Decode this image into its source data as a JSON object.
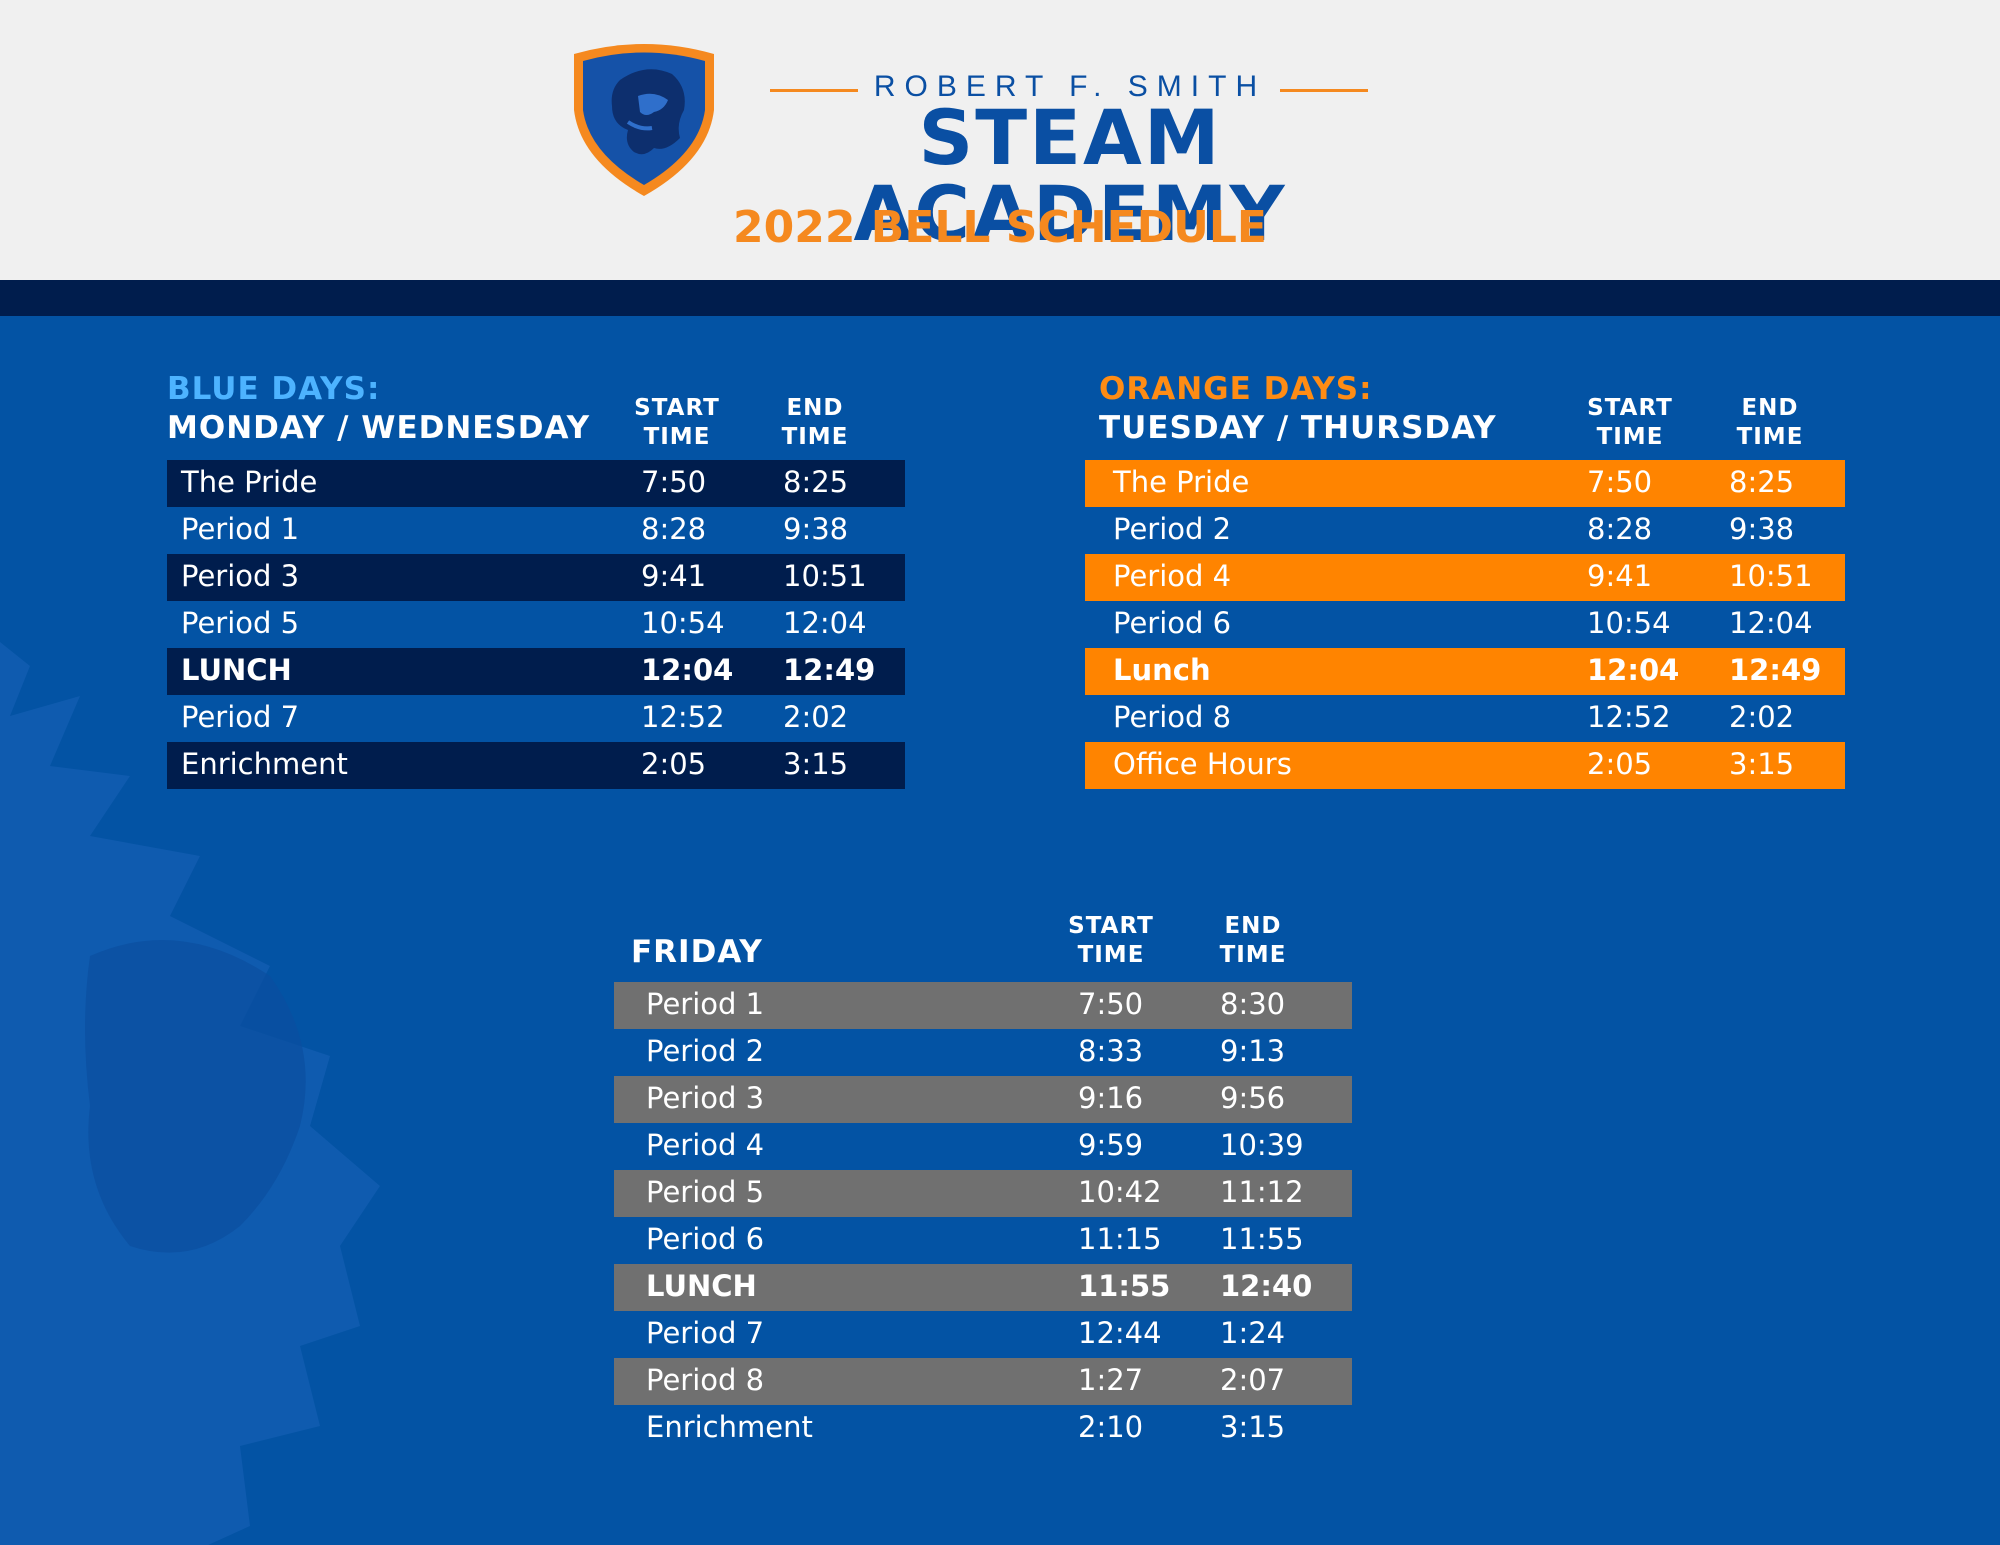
{
  "header": {
    "school_name": "ROBERT F. SMITH",
    "academy": "STEAM ACADEMY",
    "schedule_title": "2022 BELL SCHEDULE"
  },
  "colors": {
    "blue_bg": "#0353a4",
    "navy": "#001d4d",
    "orange": "#ff8400",
    "gray": "#707070",
    "light_blue": "#4db3ff"
  },
  "blue_days": {
    "label": "BLUE DAYS:",
    "days": "MONDAY / WEDNESDAY",
    "start_head": [
      "START",
      "TIME"
    ],
    "end_head": [
      "END",
      "TIME"
    ],
    "rows": [
      {
        "name": "The Pride",
        "start": "7:50",
        "end": "8:25",
        "highlight": true,
        "bold": false
      },
      {
        "name": "Period 1",
        "start": "8:28",
        "end": "9:38",
        "highlight": false,
        "bold": false
      },
      {
        "name": "Period 3",
        "start": "9:41",
        "end": "10:51",
        "highlight": true,
        "bold": false
      },
      {
        "name": "Period 5",
        "start": "10:54",
        "end": "12:04",
        "highlight": false,
        "bold": false
      },
      {
        "name": "LUNCH",
        "start": "12:04",
        "end": "12:49",
        "highlight": true,
        "bold": true
      },
      {
        "name": "Period 7",
        "start": "12:52",
        "end": "2:02",
        "highlight": false,
        "bold": false
      },
      {
        "name": "Enrichment",
        "start": "2:05",
        "end": "3:15",
        "highlight": true,
        "bold": false
      }
    ]
  },
  "orange_days": {
    "label": "ORANGE DAYS:",
    "days": "TUESDAY / THURSDAY",
    "start_head": [
      "START",
      "TIME"
    ],
    "end_head": [
      "END",
      "TIME"
    ],
    "rows": [
      {
        "name": "The Pride",
        "start": "7:50",
        "end": "8:25",
        "highlight": true,
        "bold": false
      },
      {
        "name": "Period 2",
        "start": "8:28",
        "end": "9:38",
        "highlight": false,
        "bold": false
      },
      {
        "name": "Period 4",
        "start": "9:41",
        "end": "10:51",
        "highlight": true,
        "bold": false
      },
      {
        "name": "Period 6",
        "start": "10:54",
        "end": "12:04",
        "highlight": false,
        "bold": false
      },
      {
        "name": "Lunch",
        "start": "12:04",
        "end": "12:49",
        "highlight": true,
        "bold": true
      },
      {
        "name": "Period 8",
        "start": "12:52",
        "end": "2:02",
        "highlight": false,
        "bold": false
      },
      {
        "name": "Office Hours",
        "start": "2:05",
        "end": "3:15",
        "highlight": true,
        "bold": false
      }
    ]
  },
  "friday": {
    "label": "FRIDAY",
    "start_head": [
      "START",
      "TIME"
    ],
    "end_head": [
      "END",
      "TIME"
    ],
    "rows": [
      {
        "name": "Period 1",
        "start": "7:50",
        "end": "8:30",
        "highlight": true,
        "bold": false
      },
      {
        "name": "Period 2",
        "start": "8:33",
        "end": "9:13",
        "highlight": false,
        "bold": false
      },
      {
        "name": "Period 3",
        "start": "9:16",
        "end": "9:56",
        "highlight": true,
        "bold": false
      },
      {
        "name": "Period 4",
        "start": "9:59",
        "end": "10:39",
        "highlight": false,
        "bold": false
      },
      {
        "name": "Period 5",
        "start": "10:42",
        "end": "11:12",
        "highlight": true,
        "bold": false
      },
      {
        "name": "Period 6",
        "start": "11:15",
        "end": "11:55",
        "highlight": false,
        "bold": false
      },
      {
        "name": "LUNCH",
        "start": "11:55",
        "end": "12:40",
        "highlight": true,
        "bold": true
      },
      {
        "name": "Period 7",
        "start": "12:44",
        "end": "1:24",
        "highlight": false,
        "bold": false
      },
      {
        "name": "Period 8",
        "start": "1:27",
        "end": "2:07",
        "highlight": true,
        "bold": false
      },
      {
        "name": "Enrichment",
        "start": "2:10",
        "end": "3:15",
        "highlight": false,
        "bold": false
      }
    ]
  }
}
